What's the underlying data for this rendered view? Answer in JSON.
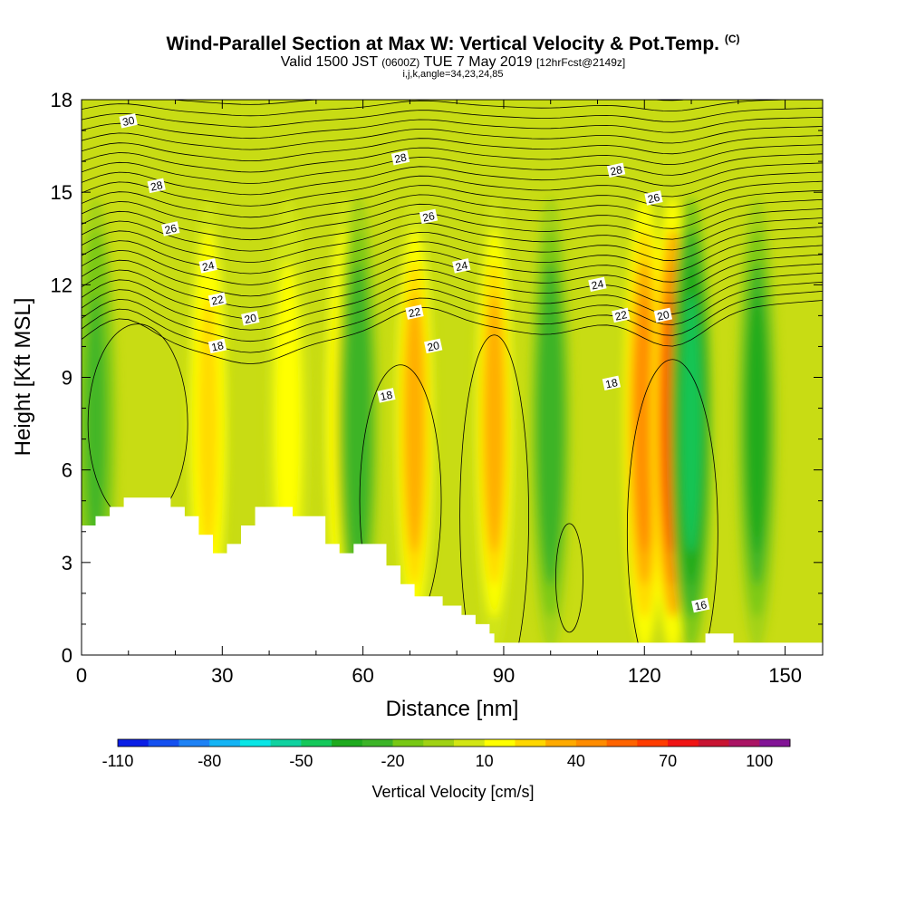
{
  "title": {
    "main": "Wind-Parallel Section at Max W: Vertical Velocity & Pot.Temp.",
    "copyright": "(C)",
    "valid_prefix": "Valid 1500 JST",
    "valid_utc": "(0600Z)",
    "valid_date": "TUE 7 May 2019",
    "forecast": "[12hrFcst@2149z]",
    "indices": "i,j,k,angle=34,23,24,85"
  },
  "chart_data": {
    "type": "heatmap",
    "xlabel": "Distance [nm]",
    "ylabel": "Height [Kft MSL]",
    "xlim": [
      0,
      158
    ],
    "ylim": [
      0,
      18
    ],
    "x_ticks": [
      0,
      30,
      60,
      90,
      120,
      150
    ],
    "y_ticks": [
      0,
      3,
      6,
      9,
      12,
      15,
      18
    ],
    "colorbar": {
      "label": "Vertical Velocity [cm/s]",
      "range": [
        -110,
        110
      ],
      "step": 10,
      "tick_labels": [
        -110,
        -80,
        -50,
        -20,
        10,
        40,
        70,
        100
      ],
      "colors": [
        "#0a1ee6",
        "#1450f0",
        "#1e82f5",
        "#14b4f5",
        "#0ae6e6",
        "#10d2a0",
        "#14c85a",
        "#1eaa1e",
        "#3cb428",
        "#78c814",
        "#a0d214",
        "#d2e614",
        "#ffff00",
        "#ffd700",
        "#ffaa00",
        "#ff8c00",
        "#ff6400",
        "#ff3c00",
        "#f01414",
        "#c81432",
        "#aa1464",
        "#821496"
      ]
    },
    "velocity_updraft_columns": [
      {
        "x": 27,
        "peak_cm_s": 25
      },
      {
        "x": 44,
        "peak_cm_s": 15
      },
      {
        "x": 56,
        "peak_cm_s": 25
      },
      {
        "x": 71,
        "peak_cm_s": 35
      },
      {
        "x": 88,
        "peak_cm_s": 35
      },
      {
        "x": 120,
        "peak_cm_s": 45
      },
      {
        "x": 126,
        "peak_cm_s": 65
      }
    ],
    "velocity_downdraft_columns": [
      {
        "x": 3,
        "peak_cm_s": -25
      },
      {
        "x": 59,
        "peak_cm_s": -30
      },
      {
        "x": 100,
        "peak_cm_s": -30
      },
      {
        "x": 130,
        "peak_cm_s": -45
      },
      {
        "x": 144,
        "peak_cm_s": -35
      }
    ],
    "theta_contour_labels": [
      {
        "value": "30",
        "x": 10,
        "y": 17.3
      },
      {
        "value": "28",
        "x": 16,
        "y": 15.2
      },
      {
        "value": "26",
        "x": 19,
        "y": 13.8
      },
      {
        "value": "24",
        "x": 27,
        "y": 12.6
      },
      {
        "value": "22",
        "x": 29,
        "y": 11.5
      },
      {
        "value": "20",
        "x": 36,
        "y": 10.9
      },
      {
        "value": "18",
        "x": 29,
        "y": 10.0
      },
      {
        "value": "28",
        "x": 68,
        "y": 16.1
      },
      {
        "value": "26",
        "x": 74,
        "y": 14.2
      },
      {
        "value": "24",
        "x": 81,
        "y": 12.6
      },
      {
        "value": "22",
        "x": 71,
        "y": 11.1
      },
      {
        "value": "20",
        "x": 75,
        "y": 10.0
      },
      {
        "value": "18",
        "x": 65,
        "y": 8.4
      },
      {
        "value": "28",
        "x": 114,
        "y": 15.7
      },
      {
        "value": "26",
        "x": 122,
        "y": 14.8
      },
      {
        "value": "24",
        "x": 110,
        "y": 12.0
      },
      {
        "value": "22",
        "x": 115,
        "y": 11.0
      },
      {
        "value": "20",
        "x": 124,
        "y": 11.0
      },
      {
        "value": "18",
        "x": 113,
        "y": 8.8
      },
      {
        "value": "16",
        "x": 132,
        "y": 1.6
      }
    ],
    "terrain": [
      [
        0,
        4.2
      ],
      [
        3,
        4.2
      ],
      [
        3,
        4.5
      ],
      [
        6,
        4.5
      ],
      [
        6,
        4.8
      ],
      [
        9,
        4.8
      ],
      [
        9,
        5.1
      ],
      [
        19,
        5.1
      ],
      [
        19,
        4.8
      ],
      [
        22,
        4.8
      ],
      [
        22,
        4.5
      ],
      [
        25,
        4.5
      ],
      [
        25,
        3.9
      ],
      [
        28,
        3.9
      ],
      [
        28,
        3.3
      ],
      [
        31,
        3.3
      ],
      [
        31,
        3.6
      ],
      [
        34,
        3.6
      ],
      [
        34,
        4.2
      ],
      [
        37,
        4.2
      ],
      [
        37,
        4.8
      ],
      [
        45,
        4.8
      ],
      [
        45,
        4.5
      ],
      [
        52,
        4.5
      ],
      [
        52,
        3.6
      ],
      [
        55,
        3.6
      ],
      [
        55,
        3.3
      ],
      [
        58,
        3.3
      ],
      [
        58,
        3.6
      ],
      [
        65,
        3.6
      ],
      [
        65,
        2.9
      ],
      [
        68,
        2.9
      ],
      [
        68,
        2.3
      ],
      [
        71,
        2.3
      ],
      [
        71,
        1.9
      ],
      [
        77,
        1.9
      ],
      [
        77,
        1.6
      ],
      [
        81,
        1.6
      ],
      [
        81,
        1.3
      ],
      [
        84,
        1.3
      ],
      [
        84,
        1.0
      ],
      [
        87,
        1.0
      ],
      [
        87,
        0.7
      ],
      [
        88,
        0.7
      ],
      [
        88,
        0.4
      ],
      [
        133,
        0.4
      ],
      [
        133,
        0.7
      ],
      [
        139,
        0.7
      ],
      [
        139,
        0.4
      ],
      [
        158,
        0.4
      ],
      [
        158,
        0
      ],
      [
        0,
        0
      ]
    ]
  }
}
